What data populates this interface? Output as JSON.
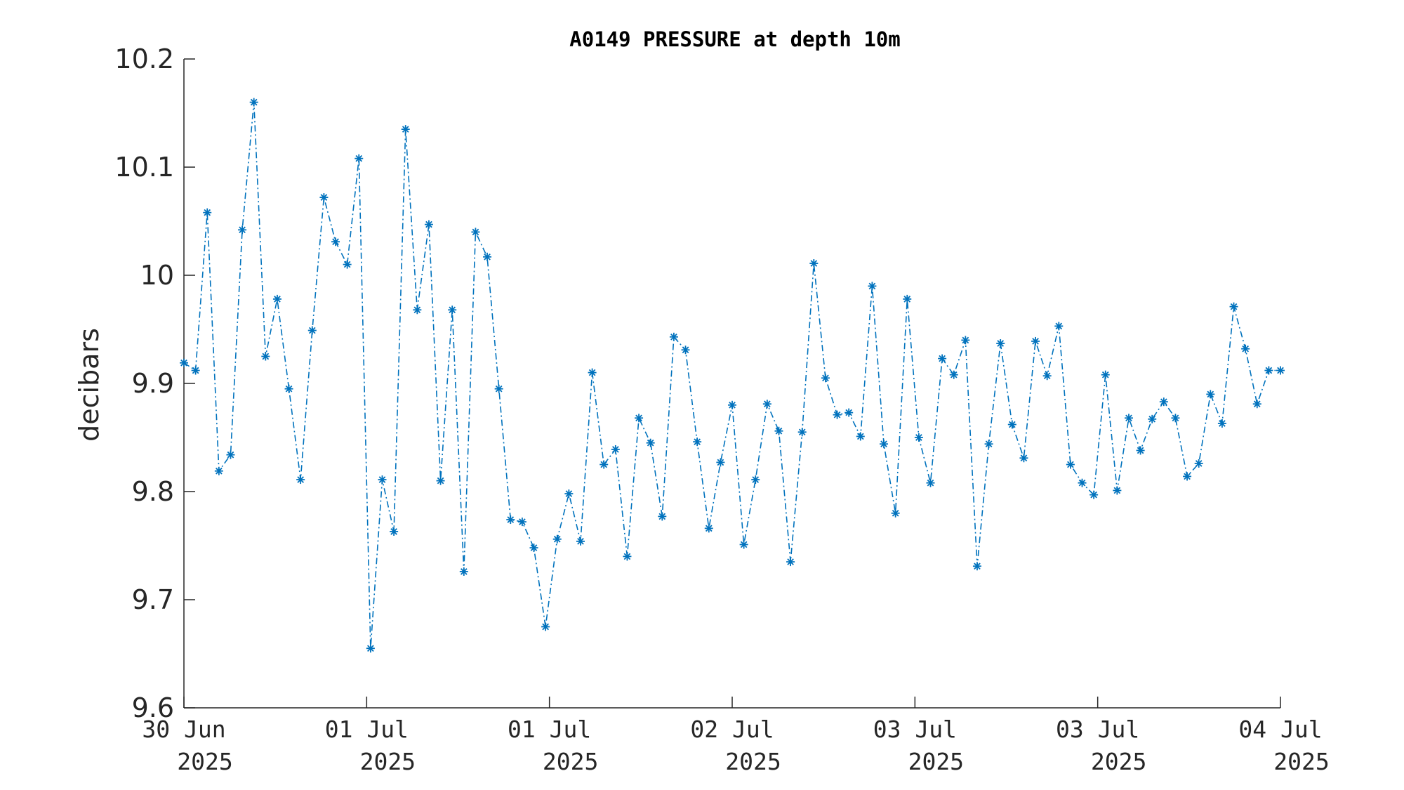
{
  "chart_data": {
    "type": "line",
    "title": "A0149 PRESSURE at depth 10m",
    "xlabel": "",
    "ylabel": "decibars",
    "ylim": [
      9.6,
      10.2
    ],
    "yticks": [
      "9.6",
      "9.7",
      "9.8",
      "9.9",
      "10",
      "10.1",
      "10.2"
    ],
    "xticks": [
      {
        "line1": "30 Jun",
        "line2": "2025"
      },
      {
        "line1": "01 Jul",
        "line2": "2025"
      },
      {
        "line1": "01 Jul",
        "line2": "2025"
      },
      {
        "line1": "02 Jul",
        "line2": "2025"
      },
      {
        "line1": "03 Jul",
        "line2": "2025"
      },
      {
        "line1": "03 Jul",
        "line2": "2025"
      },
      {
        "line1": "04 Jul",
        "line2": "2025"
      }
    ],
    "line_style": "dash-dot",
    "marker": "asterisk",
    "color": "#0072BD",
    "grid": false,
    "series": [
      {
        "values": [
          9.919,
          9.912,
          10.058,
          9.819,
          9.834,
          10.042,
          10.16,
          9.925,
          9.978,
          9.895,
          9.811,
          9.949,
          10.072,
          10.031,
          10.01,
          10.108,
          9.655,
          9.811,
          9.763,
          10.135,
          9.968,
          10.047,
          9.81,
          9.968,
          9.726,
          10.04,
          10.017,
          9.895,
          9.774,
          9.772,
          9.748,
          9.675,
          9.756,
          9.798,
          9.754,
          9.91,
          9.825,
          9.839,
          9.74,
          9.868,
          9.845,
          9.777,
          9.943,
          9.931,
          9.846,
          9.766,
          9.827,
          9.88,
          9.751,
          9.811,
          9.881,
          9.856,
          9.735,
          9.855,
          10.011,
          9.905,
          9.871,
          9.873,
          9.851,
          9.99,
          9.844,
          9.78,
          9.978,
          9.85,
          9.808,
          9.923,
          9.908,
          9.94,
          9.731,
          9.844,
          9.937,
          9.862,
          9.831,
          9.939,
          9.907,
          9.953,
          9.825,
          9.808,
          9.797,
          9.908,
          9.801,
          9.868,
          9.838,
          9.867,
          9.883,
          9.868,
          9.814,
          9.826,
          9.89,
          9.863,
          9.971,
          9.932,
          9.881,
          9.912,
          9.912
        ]
      }
    ]
  }
}
